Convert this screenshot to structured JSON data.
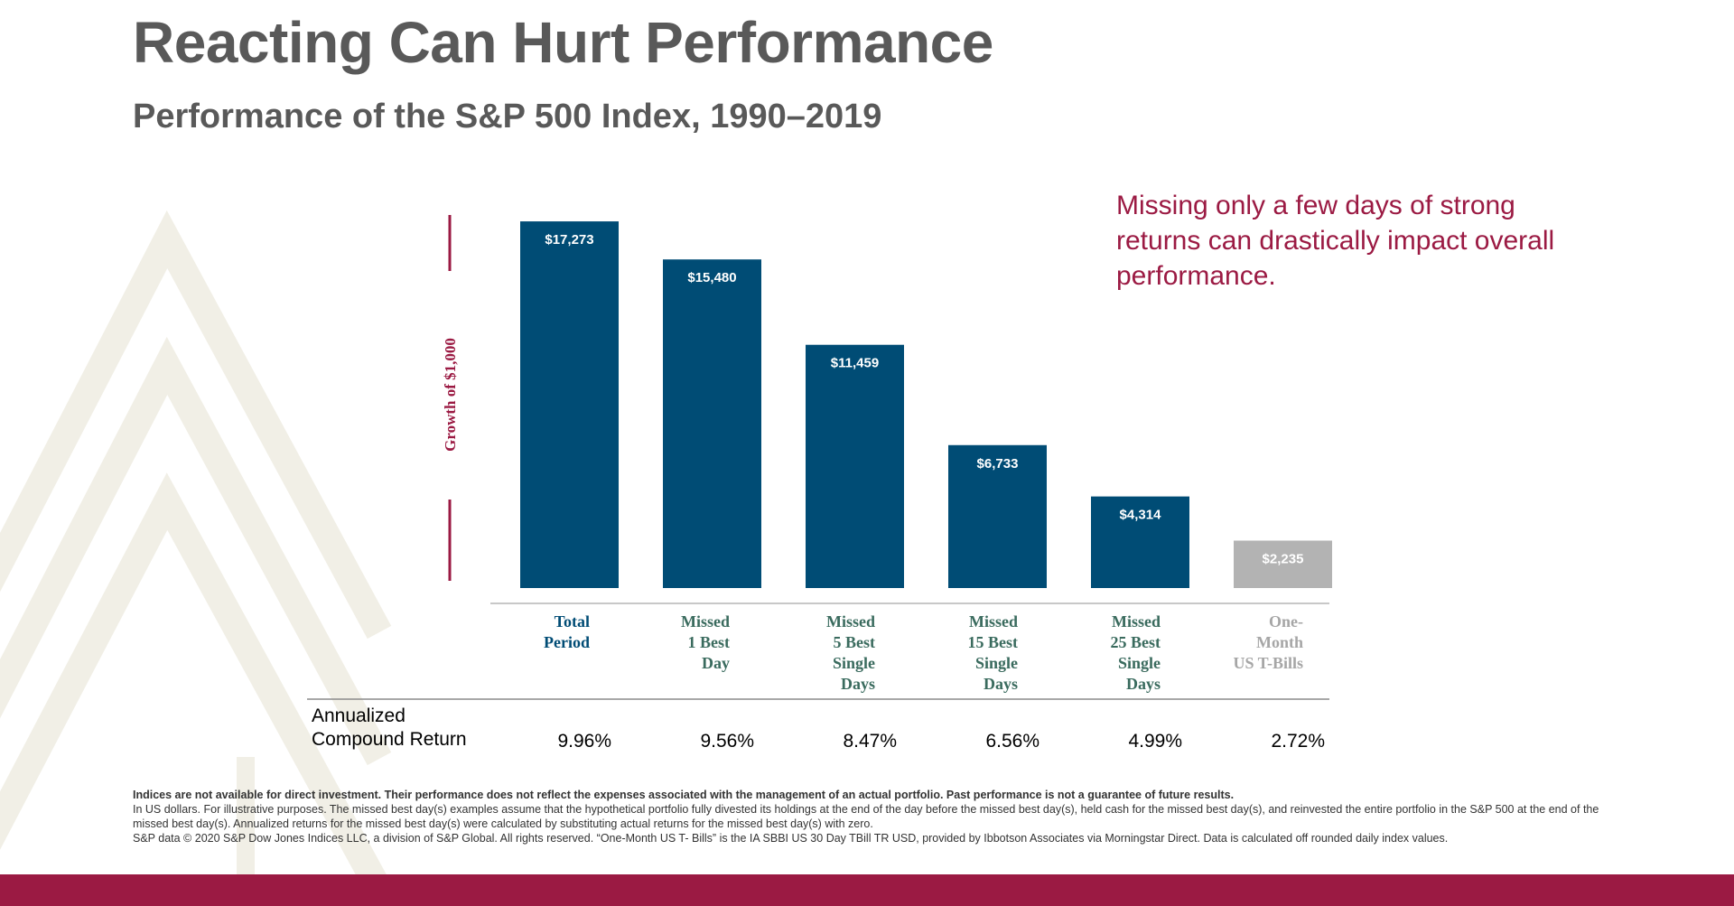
{
  "title": "Reacting Can Hurt Performance",
  "subtitle": "Performance of the S&P 500 Index, 1990–2019",
  "callout": "Missing only a few days of strong returns can drastically impact overall performance.",
  "colors": {
    "bar_primary": "#004c75",
    "bar_secondary": "#b3b3b3",
    "accent": "#9b1a43",
    "label_primary": "#004c75",
    "label_secondary": "#3a6b5e",
    "label_muted": "#a6a6a6",
    "decoration": "#f1efe6"
  },
  "chart_data": {
    "type": "bar",
    "ylabel": "Growth of $1,000",
    "categories": [
      [
        "Total",
        "Period"
      ],
      [
        "Missed",
        "1 Best",
        "Day"
      ],
      [
        "Missed",
        "5 Best",
        "Single",
        "Days"
      ],
      [
        "Missed",
        "15 Best",
        "Single",
        "Days"
      ],
      [
        "Missed",
        "25 Best",
        "Single",
        "Days"
      ],
      [
        "One-",
        "Month",
        "US T-Bills"
      ]
    ],
    "values": [
      17273,
      15480,
      11459,
      6733,
      4314,
      2235
    ],
    "value_labels": [
      "$17,273",
      "$15,480",
      "$11,459",
      "$6,733",
      "$4,314",
      "$2,235"
    ],
    "annualized_returns": [
      "9.96%",
      "9.56%",
      "8.47%",
      "6.56%",
      "4.99%",
      "2.72%"
    ],
    "ylim": [
      0,
      18000
    ],
    "grid": false,
    "legend": "none"
  },
  "table": {
    "row_label_line1": "Annualized",
    "row_label_line2": "Compound Return"
  },
  "footnotes": {
    "line1": "Indices are not available for direct investment. Their performance does not reflect the expenses associated with the management of an actual portfolio. Past performance is not a guarantee of future results.",
    "line2": "In US dollars. For illustrative purposes. The missed best day(s) examples assume that the hypothetical portfolio fully divested its holdings at the end of the day before the missed best day(s), held cash for the missed best day(s), and reinvested the entire portfolio in the S&P 500 at the end of the missed best day(s). Annualized returns for the missed best day(s) were calculated by substituting actual returns for the missed best day(s) with zero.",
    "line3": "S&P data © 2020 S&P Dow Jones Indices LLC, a division of S&P Global. All rights reserved. “One-Month US T- Bills” is the IA SBBI US 30 Day TBill TR USD, provided by Ibbotson Associates via Morningstar Direct. Data is calculated off rounded daily index values."
  }
}
